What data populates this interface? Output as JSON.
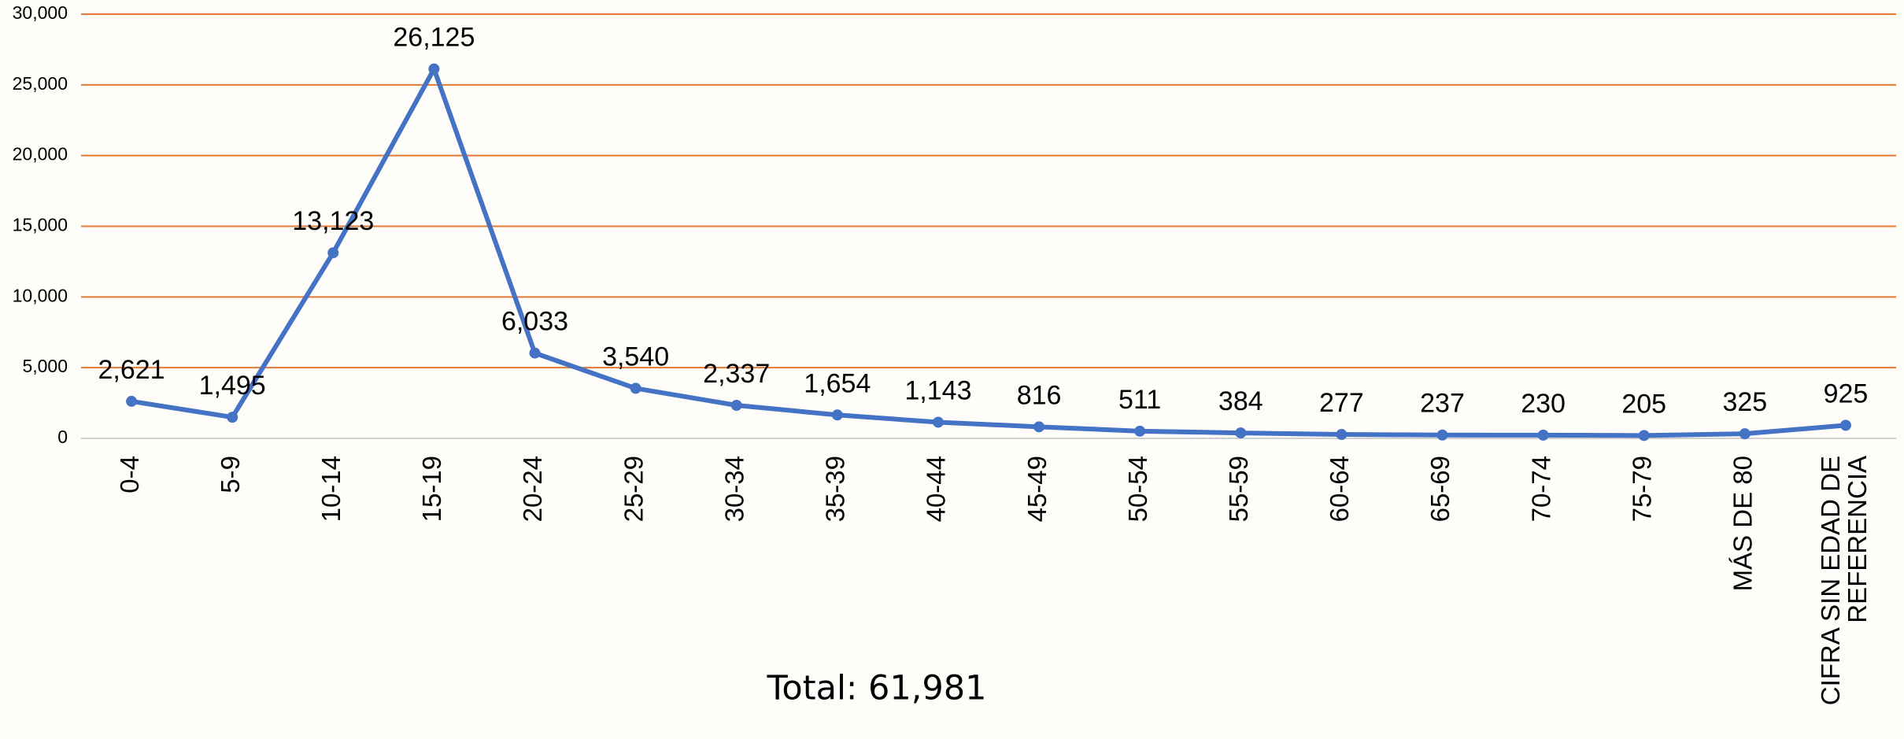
{
  "chart_data": {
    "type": "line",
    "categories": [
      "0-4",
      "5-9",
      "10-14",
      "15-19",
      "20-24",
      "25-29",
      "30-34",
      "35-39",
      "40-44",
      "45-49",
      "50-54",
      "55-59",
      "60-64",
      "65-69",
      "70-74",
      "75-79",
      "MÁS DE 80",
      "CIFRA SIN EDAD DE REFERENCIA"
    ],
    "values": [
      2621,
      1495,
      13123,
      26125,
      6033,
      3540,
      2337,
      1654,
      1143,
      816,
      511,
      384,
      277,
      237,
      230,
      205,
      325,
      925
    ],
    "value_labels": [
      "2,621",
      "1,495",
      "13,123",
      "26,125",
      "6,033",
      "3,540",
      "2,337",
      "1,654",
      "1,143",
      "816",
      "511",
      "384",
      "277",
      "237",
      "230",
      "205",
      "325",
      "925"
    ],
    "color": "#4472c4",
    "ylim": [
      0,
      30000
    ],
    "yticks": [
      0,
      {
        "value": 5000,
        "label": "5,000"
      },
      {
        "value": 10000,
        "label": "10,000"
      },
      {
        "value": 15000,
        "label": "15,000"
      },
      {
        "value": 20000,
        "label": "20,000"
      },
      {
        "value": 25000,
        "label": "25,000"
      },
      {
        "value": 30000,
        "label": "30,000"
      }
    ],
    "grid": true,
    "grid_color": "#e07a35",
    "annotation": "Total: 61,981"
  }
}
